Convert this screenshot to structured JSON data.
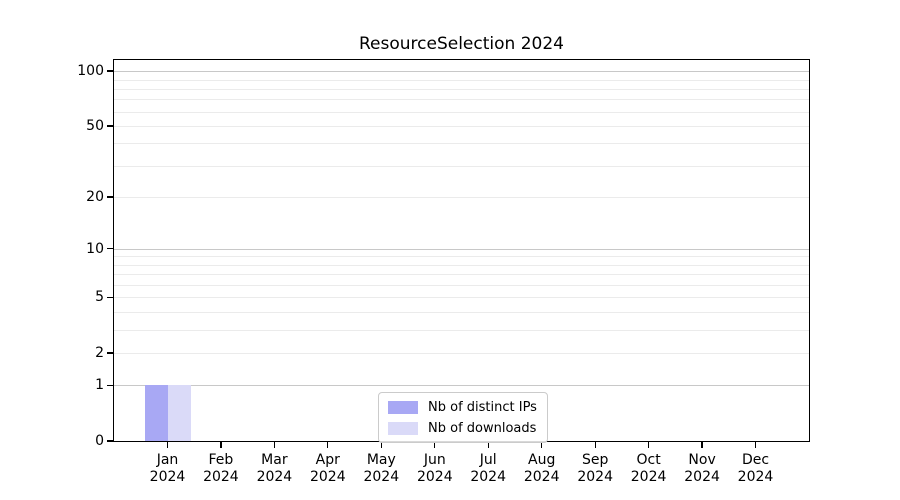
{
  "chart_data": {
    "type": "bar",
    "title": "ResourceSelection 2024",
    "categories": [
      "Jan",
      "Feb",
      "Mar",
      "Apr",
      "May",
      "Jun",
      "Jul",
      "Aug",
      "Sep",
      "Oct",
      "Nov",
      "Dec"
    ],
    "category_year": "2024",
    "series": [
      {
        "name": "Nb of distinct IPs",
        "color": "#a8a8f4",
        "values": [
          1,
          0,
          0,
          0,
          0,
          0,
          0,
          0,
          0,
          0,
          0,
          0
        ]
      },
      {
        "name": "Nb of downloads",
        "color": "#dadaf8",
        "values": [
          1,
          0,
          0,
          0,
          0,
          0,
          0,
          0,
          0,
          0,
          0,
          0
        ]
      }
    ],
    "xlabel": "",
    "ylabel": "",
    "yscale": "log1p",
    "ylim": [
      0,
      115
    ],
    "y_ticks": [
      0,
      1,
      2,
      5,
      10,
      20,
      50,
      100
    ],
    "y_major_gridlines": [
      1,
      10,
      100
    ],
    "y_minor_gridlines": [
      2,
      3,
      4,
      5,
      6,
      7,
      8,
      9,
      20,
      30,
      40,
      50,
      60,
      70,
      80,
      90
    ],
    "grid": "on",
    "legend": {
      "position": "lower center",
      "entries": [
        "Nb of distinct IPs",
        "Nb of downloads"
      ]
    },
    "style": {
      "spine_color": "#000000",
      "grid_major_color": "#c8c8c8",
      "grid_minor_color": "#ebebeb",
      "text_color": "#000000",
      "background": "#ffffff"
    }
  }
}
